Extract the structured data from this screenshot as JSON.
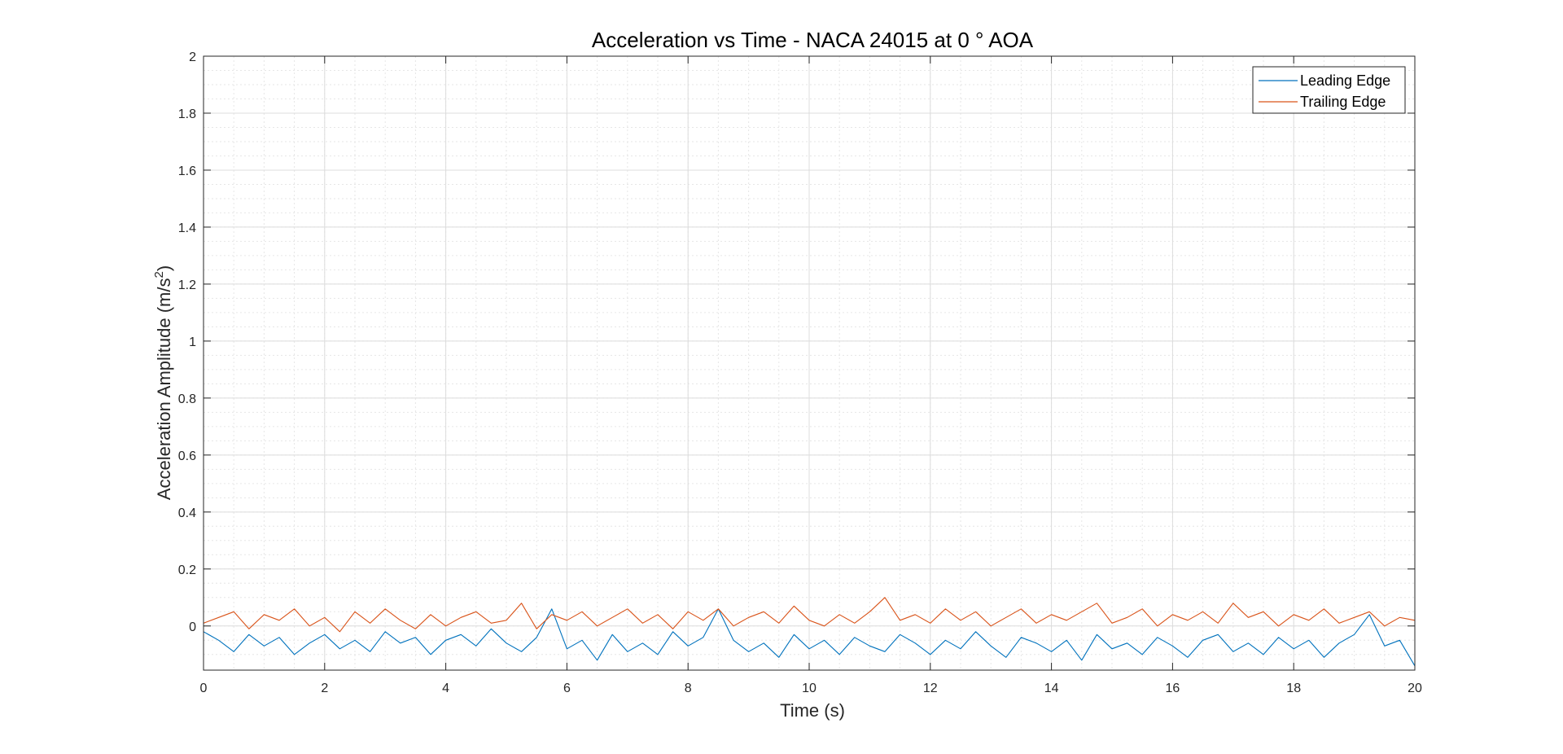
{
  "chart_data": {
    "type": "line",
    "title": "Acceleration vs Time - NACA 24015 at 0 ° AOA",
    "xlabel": "Time (s)",
    "ylabel": "Acceleration Amplitude (m/s",
    "ylabel_sup": "2",
    "ylabel_tail": ")",
    "xlim": [
      0,
      20
    ],
    "ylim": [
      -0.155,
      2
    ],
    "xticks": [
      0,
      2,
      4,
      6,
      8,
      10,
      12,
      14,
      16,
      18,
      20
    ],
    "xtick_labels": [
      "0",
      "2",
      "4",
      "6",
      "8",
      "10",
      "12",
      "14",
      "16",
      "18",
      "20"
    ],
    "yticks": [
      0,
      0.2,
      0.4,
      0.6,
      0.8,
      1,
      1.2,
      1.4,
      1.6,
      1.8,
      2
    ],
    "ytick_labels": [
      "0",
      "0.2",
      "0.4",
      "0.6",
      "0.8",
      "1",
      "1.2",
      "1.4",
      "1.6",
      "1.8",
      "2"
    ],
    "grid": true,
    "minor_grid": true,
    "legend_position": "top-right",
    "series": [
      {
        "name": "Leading Edge",
        "color": "#0072BD",
        "x": [
          0,
          0.25,
          0.5,
          0.75,
          1,
          1.25,
          1.5,
          1.75,
          2,
          2.25,
          2.5,
          2.75,
          3,
          3.25,
          3.5,
          3.75,
          4,
          4.25,
          4.5,
          4.75,
          5,
          5.25,
          5.5,
          5.75,
          6,
          6.25,
          6.5,
          6.75,
          7,
          7.25,
          7.5,
          7.75,
          8,
          8.25,
          8.5,
          8.75,
          9,
          9.25,
          9.5,
          9.75,
          10,
          10.25,
          10.5,
          10.75,
          11,
          11.25,
          11.5,
          11.75,
          12,
          12.25,
          12.5,
          12.75,
          13,
          13.25,
          13.5,
          13.75,
          14,
          14.25,
          14.5,
          14.75,
          15,
          15.25,
          15.5,
          15.75,
          16,
          16.25,
          16.5,
          16.75,
          17,
          17.25,
          17.5,
          17.75,
          18,
          18.25,
          18.5,
          18.75,
          19,
          19.25,
          19.5,
          19.75,
          20
        ],
        "y": [
          -0.02,
          -0.05,
          -0.09,
          -0.03,
          -0.07,
          -0.04,
          -0.1,
          -0.06,
          -0.03,
          -0.08,
          -0.05,
          -0.09,
          -0.02,
          -0.06,
          -0.04,
          -0.1,
          -0.05,
          -0.03,
          -0.07,
          -0.01,
          -0.06,
          -0.09,
          -0.04,
          0.06,
          -0.08,
          -0.05,
          -0.12,
          -0.03,
          -0.09,
          -0.06,
          -0.1,
          -0.02,
          -0.07,
          -0.04,
          0.06,
          -0.05,
          -0.09,
          -0.06,
          -0.11,
          -0.03,
          -0.08,
          -0.05,
          -0.1,
          -0.04,
          -0.07,
          -0.09,
          -0.03,
          -0.06,
          -0.1,
          -0.05,
          -0.08,
          -0.02,
          -0.07,
          -0.11,
          -0.04,
          -0.06,
          -0.09,
          -0.05,
          -0.12,
          -0.03,
          -0.08,
          -0.06,
          -0.1,
          -0.04,
          -0.07,
          -0.11,
          -0.05,
          -0.03,
          -0.09,
          -0.06,
          -0.1,
          -0.04,
          -0.08,
          -0.05,
          -0.11,
          -0.06,
          -0.03,
          0.04,
          -0.07,
          -0.05,
          -0.14
        ]
      },
      {
        "name": "Trailing Edge",
        "color": "#D95319",
        "x": [
          0,
          0.25,
          0.5,
          0.75,
          1,
          1.25,
          1.5,
          1.75,
          2,
          2.25,
          2.5,
          2.75,
          3,
          3.25,
          3.5,
          3.75,
          4,
          4.25,
          4.5,
          4.75,
          5,
          5.25,
          5.5,
          5.75,
          6,
          6.25,
          6.5,
          6.75,
          7,
          7.25,
          7.5,
          7.75,
          8,
          8.25,
          8.5,
          8.75,
          9,
          9.25,
          9.5,
          9.75,
          10,
          10.25,
          10.5,
          10.75,
          11,
          11.25,
          11.5,
          11.75,
          12,
          12.25,
          12.5,
          12.75,
          13,
          13.25,
          13.5,
          13.75,
          14,
          14.25,
          14.5,
          14.75,
          15,
          15.25,
          15.5,
          15.75,
          16,
          16.25,
          16.5,
          16.75,
          17,
          17.25,
          17.5,
          17.75,
          18,
          18.25,
          18.5,
          18.75,
          19,
          19.25,
          19.5,
          19.75,
          20
        ],
        "y": [
          0.01,
          0.03,
          0.05,
          -0.01,
          0.04,
          0.02,
          0.06,
          0.0,
          0.03,
          -0.02,
          0.05,
          0.01,
          0.06,
          0.02,
          -0.01,
          0.04,
          0.0,
          0.03,
          0.05,
          0.01,
          0.02,
          0.08,
          -0.01,
          0.04,
          0.02,
          0.05,
          0.0,
          0.03,
          0.06,
          0.01,
          0.04,
          -0.01,
          0.05,
          0.02,
          0.06,
          0.0,
          0.03,
          0.05,
          0.01,
          0.07,
          0.02,
          0.0,
          0.04,
          0.01,
          0.05,
          0.1,
          0.02,
          0.04,
          0.01,
          0.06,
          0.02,
          0.05,
          0.0,
          0.03,
          0.06,
          0.01,
          0.04,
          0.02,
          0.05,
          0.08,
          0.01,
          0.03,
          0.06,
          0.0,
          0.04,
          0.02,
          0.05,
          0.01,
          0.08,
          0.03,
          0.05,
          0.0,
          0.04,
          0.02,
          0.06,
          0.01,
          0.03,
          0.05,
          0.0,
          0.03,
          0.02
        ]
      }
    ]
  }
}
